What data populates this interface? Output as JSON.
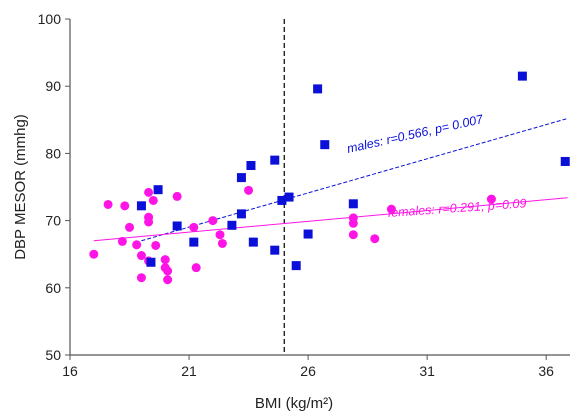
{
  "chart_data": {
    "type": "scatter",
    "xlabel": "BMI (kg/m²)",
    "ylabel": "DBP MESOR (mmhg)",
    "xlim": [
      16,
      37
    ],
    "ylim": [
      50,
      100
    ],
    "xticks": [
      "16",
      "21",
      "26",
      "31",
      "36"
    ],
    "yticks": [
      "50",
      "60",
      "70",
      "80",
      "90",
      "100"
    ],
    "grid": false,
    "reference_line": {
      "x": 25,
      "style": "dashed"
    },
    "colors": {
      "males": "#0a10d8",
      "females": "#ff14e6"
    },
    "annotations": {
      "males": "males: r=0.566, p= 0.007",
      "females": "females: r=0.291, p=0.09"
    },
    "series": [
      {
        "marker": "square",
        "trend": {
          "x": [
            19,
            36.9
          ],
          "y": [
            67.0,
            85.2
          ]
        },
        "points": [
          [
            19.0,
            72.2
          ],
          [
            19.4,
            63.8
          ],
          [
            19.7,
            74.6
          ],
          [
            20.5,
            69.2
          ],
          [
            21.2,
            66.8
          ],
          [
            22.8,
            69.3
          ],
          [
            23.2,
            76.4
          ],
          [
            23.2,
            71.0
          ],
          [
            23.6,
            78.2
          ],
          [
            23.7,
            66.8
          ],
          [
            24.6,
            79.0
          ],
          [
            24.6,
            65.6
          ],
          [
            24.9,
            73.0
          ],
          [
            25.2,
            73.5
          ],
          [
            25.5,
            63.3
          ],
          [
            26.0,
            68.0
          ],
          [
            26.4,
            89.6
          ],
          [
            26.7,
            81.3
          ],
          [
            27.9,
            72.5
          ],
          [
            35.0,
            91.5
          ],
          [
            36.8,
            78.8
          ]
        ]
      },
      {
        "marker": "circle",
        "trend": {
          "x": [
            17,
            36.9
          ],
          "y": [
            67.0,
            73.4
          ]
        },
        "points": [
          [
            17.0,
            65.0
          ],
          [
            17.6,
            72.4
          ],
          [
            18.2,
            66.9
          ],
          [
            18.3,
            72.2
          ],
          [
            18.5,
            69.0
          ],
          [
            18.8,
            66.4
          ],
          [
            19.0,
            64.8
          ],
          [
            19.0,
            61.5
          ],
          [
            19.3,
            74.2
          ],
          [
            19.3,
            70.5
          ],
          [
            19.3,
            69.8
          ],
          [
            19.3,
            64.0
          ],
          [
            19.5,
            73.0
          ],
          [
            19.6,
            66.3
          ],
          [
            20.0,
            64.2
          ],
          [
            20.0,
            63.0
          ],
          [
            20.1,
            62.5
          ],
          [
            20.1,
            61.2
          ],
          [
            20.5,
            73.6
          ],
          [
            21.2,
            69.0
          ],
          [
            21.3,
            63.0
          ],
          [
            22.0,
            70.0
          ],
          [
            22.3,
            67.9
          ],
          [
            22.4,
            66.6
          ],
          [
            23.5,
            74.5
          ],
          [
            27.9,
            70.4
          ],
          [
            27.9,
            69.6
          ],
          [
            27.9,
            67.9
          ],
          [
            28.8,
            67.3
          ],
          [
            29.5,
            71.7
          ],
          [
            33.7,
            73.2
          ]
        ]
      }
    ]
  }
}
